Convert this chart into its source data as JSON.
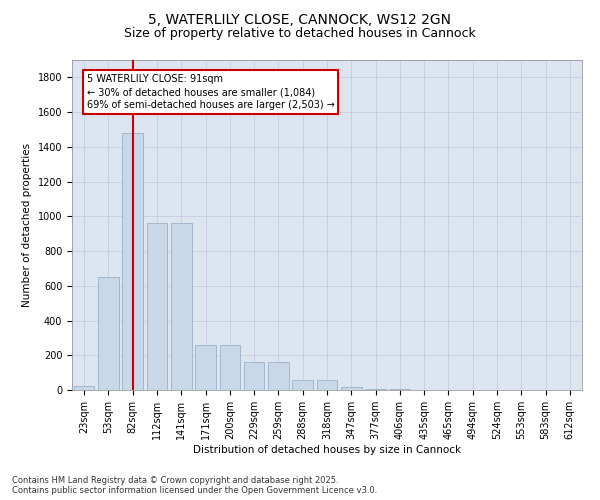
{
  "title1": "5, WATERLILY CLOSE, CANNOCK, WS12 2GN",
  "title2": "Size of property relative to detached houses in Cannock",
  "xlabel": "Distribution of detached houses by size in Cannock",
  "ylabel": "Number of detached properties",
  "categories": [
    "23sqm",
    "53sqm",
    "82sqm",
    "112sqm",
    "141sqm",
    "171sqm",
    "200sqm",
    "229sqm",
    "259sqm",
    "288sqm",
    "318sqm",
    "347sqm",
    "377sqm",
    "406sqm",
    "435sqm",
    "465sqm",
    "494sqm",
    "524sqm",
    "553sqm",
    "583sqm",
    "612sqm"
  ],
  "values": [
    25,
    650,
    1480,
    960,
    960,
    260,
    260,
    160,
    160,
    60,
    60,
    20,
    5,
    5,
    2,
    2,
    1,
    1,
    1,
    1,
    1
  ],
  "bar_color": "#c8d8e8",
  "bar_edge_color": "#9ab0c8",
  "vline_x": 2,
  "vline_color": "#cc0000",
  "annotation_box_text": "5 WATERLILY CLOSE: 91sqm\n← 30% of detached houses are smaller (1,084)\n69% of semi-detached houses are larger (2,503) →",
  "annotation_box_color": "#cc0000",
  "annotation_box_bg": "#ffffff",
  "ylim": [
    0,
    1900
  ],
  "yticks": [
    0,
    200,
    400,
    600,
    800,
    1000,
    1200,
    1400,
    1600,
    1800
  ],
  "grid_color": "#c0c8d8",
  "bg_color": "#dde6f0",
  "footer1": "Contains HM Land Registry data © Crown copyright and database right 2025.",
  "footer2": "Contains public sector information licensed under the Open Government Licence v3.0.",
  "title_fontsize": 10,
  "subtitle_fontsize": 9,
  "label_fontsize": 7.5,
  "tick_fontsize": 7,
  "footer_fontsize": 6
}
